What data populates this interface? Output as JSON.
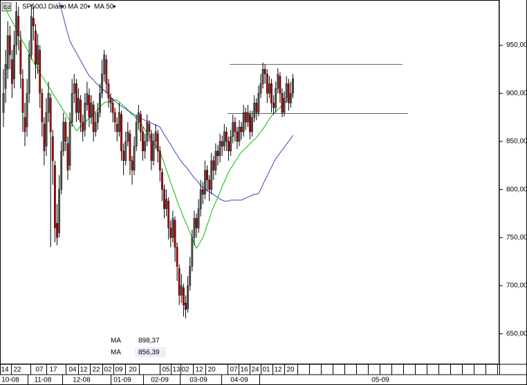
{
  "chart_data": {
    "type": "candlestick",
    "title": "SP500J Diário",
    "ylim": [
      619,
      997
    ],
    "yticks": [
      {
        "value": 650,
        "label": "650,00"
      },
      {
        "value": 700,
        "label": "700,00"
      },
      {
        "value": 750,
        "label": "750,00"
      },
      {
        "value": 800,
        "label": "800,00"
      },
      {
        "value": 850,
        "label": "850,00"
      },
      {
        "value": 900,
        "label": "900,00"
      },
      {
        "value": 950,
        "label": "950,00"
      }
    ],
    "x_labels": [
      "14",
      "22",
      "07",
      "17",
      "04",
      "12",
      "22",
      "02",
      "09",
      "20",
      "05",
      "13",
      "02",
      "12",
      "20",
      "07",
      "16",
      "24",
      "01",
      "12",
      "20"
    ],
    "month_labels": [
      "10-08",
      "11-08",
      "12-08",
      "01-09",
      "02-09",
      "03-09",
      "04-09",
      "05-09"
    ],
    "up_color": "#505050",
    "down_color": "#b00000",
    "hlines": [
      930,
      879
    ],
    "hline_color": "#606060",
    "candles": [
      [
        880,
        925,
        865,
        900
      ],
      [
        905,
        945,
        890,
        930
      ],
      [
        925,
        975,
        915,
        960
      ],
      [
        960,
        970,
        925,
        940
      ],
      [
        935,
        945,
        895,
        910
      ],
      [
        915,
        965,
        905,
        950
      ],
      [
        950,
        995,
        940,
        985
      ],
      [
        980,
        990,
        945,
        960
      ],
      [
        955,
        965,
        905,
        920
      ],
      [
        915,
        925,
        860,
        880
      ],
      [
        875,
        890,
        845,
        860
      ],
      [
        865,
        915,
        855,
        900
      ],
      [
        900,
        955,
        890,
        940
      ],
      [
        940,
        992,
        935,
        980
      ],
      [
        978,
        990,
        955,
        970
      ],
      [
        965,
        972,
        915,
        930
      ],
      [
        930,
        962,
        920,
        950
      ],
      [
        945,
        950,
        885,
        900
      ],
      [
        900,
        905,
        855,
        870
      ],
      [
        868,
        875,
        825,
        840
      ],
      [
        845,
        895,
        835,
        880
      ],
      [
        880,
        912,
        870,
        900
      ],
      [
        895,
        900,
        740,
        860
      ],
      [
        855,
        862,
        805,
        830
      ],
      [
        825,
        830,
        745,
        760
      ],
      [
        765,
        785,
        742,
        750
      ],
      [
        755,
        815,
        750,
        800
      ],
      [
        800,
        850,
        795,
        840
      ],
      [
        840,
        880,
        835,
        870
      ],
      [
        870,
        875,
        840,
        850
      ],
      [
        848,
        855,
        810,
        820
      ],
      [
        825,
        880,
        820,
        870
      ],
      [
        870,
        915,
        865,
        900
      ],
      [
        900,
        920,
        890,
        910
      ],
      [
        910,
        915,
        870,
        880
      ],
      [
        880,
        905,
        872,
        895
      ],
      [
        893,
        898,
        860,
        870
      ],
      [
        870,
        878,
        850,
        860
      ],
      [
        862,
        900,
        855,
        890
      ],
      [
        888,
        912,
        882,
        900
      ],
      [
        898,
        905,
        865,
        875
      ],
      [
        875,
        898,
        868,
        890
      ],
      [
        888,
        892,
        850,
        860
      ],
      [
        860,
        880,
        855,
        870
      ],
      [
        870,
        890,
        862,
        880
      ],
      [
        880,
        910,
        875,
        900
      ],
      [
        900,
        935,
        895,
        920
      ],
      [
        920,
        945,
        912,
        940
      ],
      [
        935,
        940,
        900,
        910
      ],
      [
        910,
        915,
        885,
        895
      ],
      [
        895,
        900,
        880,
        890
      ],
      [
        890,
        895,
        870,
        880
      ],
      [
        880,
        885,
        860,
        870
      ],
      [
        868,
        875,
        850,
        860
      ],
      [
        860,
        890,
        855,
        880
      ],
      [
        878,
        882,
        830,
        840
      ],
      [
        840,
        848,
        815,
        830
      ],
      [
        830,
        860,
        825,
        850
      ],
      [
        850,
        870,
        845,
        860
      ],
      [
        858,
        862,
        815,
        830
      ],
      [
        830,
        835,
        805,
        820
      ],
      [
        820,
        855,
        815,
        845
      ],
      [
        845,
        878,
        840,
        870
      ],
      [
        870,
        888,
        862,
        880
      ],
      [
        878,
        882,
        850,
        860
      ],
      [
        860,
        865,
        830,
        840
      ],
      [
        840,
        858,
        832,
        850
      ],
      [
        850,
        878,
        845,
        870
      ],
      [
        868,
        872,
        850,
        860
      ],
      [
        858,
        862,
        820,
        830
      ],
      [
        830,
        858,
        825,
        850
      ],
      [
        850,
        868,
        842,
        860
      ],
      [
        858,
        862,
        828,
        840
      ],
      [
        840,
        845,
        808,
        820
      ],
      [
        818,
        822,
        788,
        800
      ],
      [
        800,
        805,
        770,
        780
      ],
      [
        780,
        800,
        772,
        790
      ],
      [
        788,
        792,
        748,
        760
      ],
      [
        760,
        768,
        740,
        750
      ],
      [
        750,
        778,
        745,
        770
      ],
      [
        768,
        772,
        725,
        740
      ],
      [
        740,
        745,
        705,
        720
      ],
      [
        718,
        722,
        680,
        690
      ],
      [
        690,
        712,
        682,
        700
      ],
      [
        698,
        702,
        668,
        680
      ],
      [
        682,
        690,
        666,
        675
      ],
      [
        676,
        710,
        672,
        700
      ],
      [
        700,
        730,
        695,
        720
      ],
      [
        720,
        758,
        715,
        750
      ],
      [
        750,
        778,
        742,
        770
      ],
      [
        770,
        775,
        750,
        760
      ],
      [
        760,
        790,
        755,
        780
      ],
      [
        780,
        810,
        772,
        800
      ],
      [
        800,
        808,
        785,
        795
      ],
      [
        795,
        830,
        790,
        820
      ],
      [
        820,
        825,
        798,
        810
      ],
      [
        810,
        815,
        788,
        800
      ],
      [
        800,
        838,
        795,
        830
      ],
      [
        830,
        835,
        810,
        820
      ],
      [
        820,
        848,
        815,
        840
      ],
      [
        840,
        846,
        825,
        835
      ],
      [
        835,
        858,
        828,
        850
      ],
      [
        850,
        856,
        835,
        845
      ],
      [
        845,
        868,
        840,
        860
      ],
      [
        860,
        865,
        840,
        850
      ],
      [
        850,
        855,
        830,
        840
      ],
      [
        840,
        862,
        835,
        855
      ],
      [
        855,
        878,
        848,
        870
      ],
      [
        870,
        875,
        850,
        860
      ],
      [
        860,
        865,
        842,
        850
      ],
      [
        850,
        872,
        845,
        865
      ],
      [
        865,
        870,
        852,
        860
      ],
      [
        860,
        888,
        855,
        880
      ],
      [
        880,
        885,
        862,
        870
      ],
      [
        870,
        888,
        865,
        880
      ],
      [
        878,
        882,
        852,
        860
      ],
      [
        860,
        882,
        855,
        875
      ],
      [
        875,
        898,
        870,
        890
      ],
      [
        890,
        895,
        872,
        880
      ],
      [
        880,
        908,
        876,
        900
      ],
      [
        900,
        920,
        895,
        910
      ],
      [
        910,
        932,
        905,
        925
      ],
      [
        925,
        930,
        910,
        920
      ],
      [
        920,
        925,
        890,
        900
      ],
      [
        900,
        918,
        895,
        910
      ],
      [
        910,
        915,
        880,
        890
      ],
      [
        890,
        898,
        878,
        885
      ],
      [
        885,
        912,
        880,
        905
      ],
      [
        905,
        926,
        900,
        920
      ],
      [
        918,
        922,
        890,
        900
      ],
      [
        900,
        905,
        875,
        880
      ],
      [
        880,
        902,
        876,
        895
      ],
      [
        895,
        918,
        890,
        910
      ],
      [
        910,
        915,
        882,
        890
      ],
      [
        890,
        912,
        885,
        900
      ],
      [
        900,
        920,
        895,
        915
      ]
    ],
    "series": [
      {
        "name": "MA 20",
        "color": "#00c000",
        "value_label": "898,37",
        "values": [
          null,
          990,
          983,
          979,
          975,
          971,
          967,
          962,
          958,
          954,
          950,
          946,
          942,
          937,
          933,
          929,
          925,
          921,
          918,
          914,
          911,
          907,
          904,
          900,
          896,
          893,
          889,
          886,
          882,
          879,
          875,
          872,
          868,
          865,
          861,
          863,
          866,
          868,
          870,
          872,
          874,
          877,
          879,
          881,
          883,
          886,
          888,
          890,
          891,
          891,
          892,
          892,
          893,
          893,
          891,
          889,
          887,
          885,
          883,
          880,
          878,
          876,
          874,
          872,
          869,
          866,
          862,
          859,
          856,
          852,
          849,
          846,
          842,
          839,
          833,
          827,
          820,
          814,
          807,
          801,
          795,
          788,
          782,
          777,
          771,
          766,
          761,
          755,
          750,
          744,
          739,
          742,
          746,
          750,
          756,
          763,
          769,
          776,
          782,
          787,
          792,
          797,
          803,
          808,
          813,
          818,
          822,
          825,
          829,
          832,
          836,
          839,
          841,
          843,
          845,
          848,
          850,
          852,
          854,
          857,
          860,
          863,
          866,
          870,
          873,
          876,
          879,
          881,
          883,
          885,
          888,
          890,
          892,
          894,
          896,
          898.37
        ]
      },
      {
        "name": "MA 50",
        "color": "#4040c0",
        "value_label": "856,39",
        "values": [
          null,
          null,
          null,
          null,
          null,
          null,
          null,
          null,
          null,
          null,
          null,
          null,
          null,
          null,
          null,
          null,
          null,
          null,
          null,
          null,
          null,
          null,
          null,
          null,
          null,
          null,
          995,
          987,
          979,
          970,
          962,
          954,
          950,
          946,
          942,
          938,
          934,
          930,
          926,
          922,
          918,
          916,
          914,
          911,
          909,
          907,
          905,
          903,
          901,
          899,
          896,
          894,
          892,
          890,
          888,
          887,
          885,
          884,
          882,
          881,
          879,
          878,
          876,
          875,
          874,
          873,
          872,
          871,
          870,
          869,
          868,
          867,
          866,
          865,
          861,
          857,
          854,
          850,
          847,
          843,
          839,
          836,
          832,
          829,
          826,
          824,
          821,
          818,
          815,
          812,
          810,
          807,
          804,
          802,
          801,
          799,
          798,
          796,
          795,
          793,
          792,
          790,
          789,
          788,
          788,
          788,
          789,
          789,
          789,
          789,
          789,
          789,
          790,
          791,
          792,
          793,
          794,
          795,
          795,
          796,
          800,
          805,
          810,
          814,
          819,
          823,
          828,
          832,
          835,
          838,
          841,
          844,
          847,
          850,
          853,
          856.39
        ]
      }
    ],
    "readout_label": "MA"
  }
}
